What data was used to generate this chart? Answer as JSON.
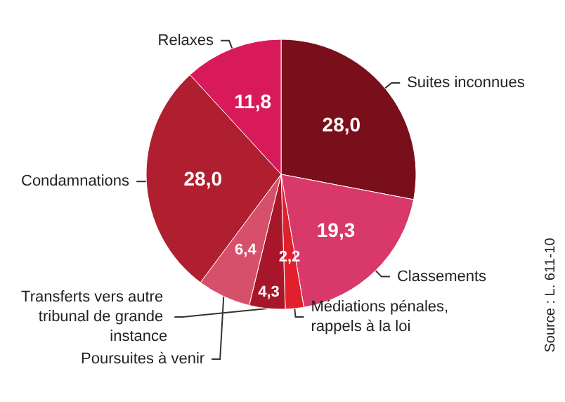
{
  "chart_data": {
    "type": "pie",
    "categories": [
      "Suites inconnues",
      "Classements",
      "Médiations pénales, rappels à la loi",
      "Transferts vers autre tribunal de grande instance",
      "Poursuites à venir",
      "Condamnations",
      "Relaxes"
    ],
    "values": [
      28.0,
      19.3,
      2.2,
      4.3,
      6.4,
      28.0,
      11.8
    ],
    "value_labels": [
      "28,0",
      "19,3",
      "2,2",
      "4,3",
      "6,4",
      "28,0",
      "11,8"
    ],
    "colors": [
      "#7a0f1c",
      "#d9386a",
      "#e0202c",
      "#a8162a",
      "#d6506c",
      "#b01f30",
      "#d81a5a"
    ],
    "annotations": [
      "Source : L. 611-10"
    ],
    "legend": false
  }
}
